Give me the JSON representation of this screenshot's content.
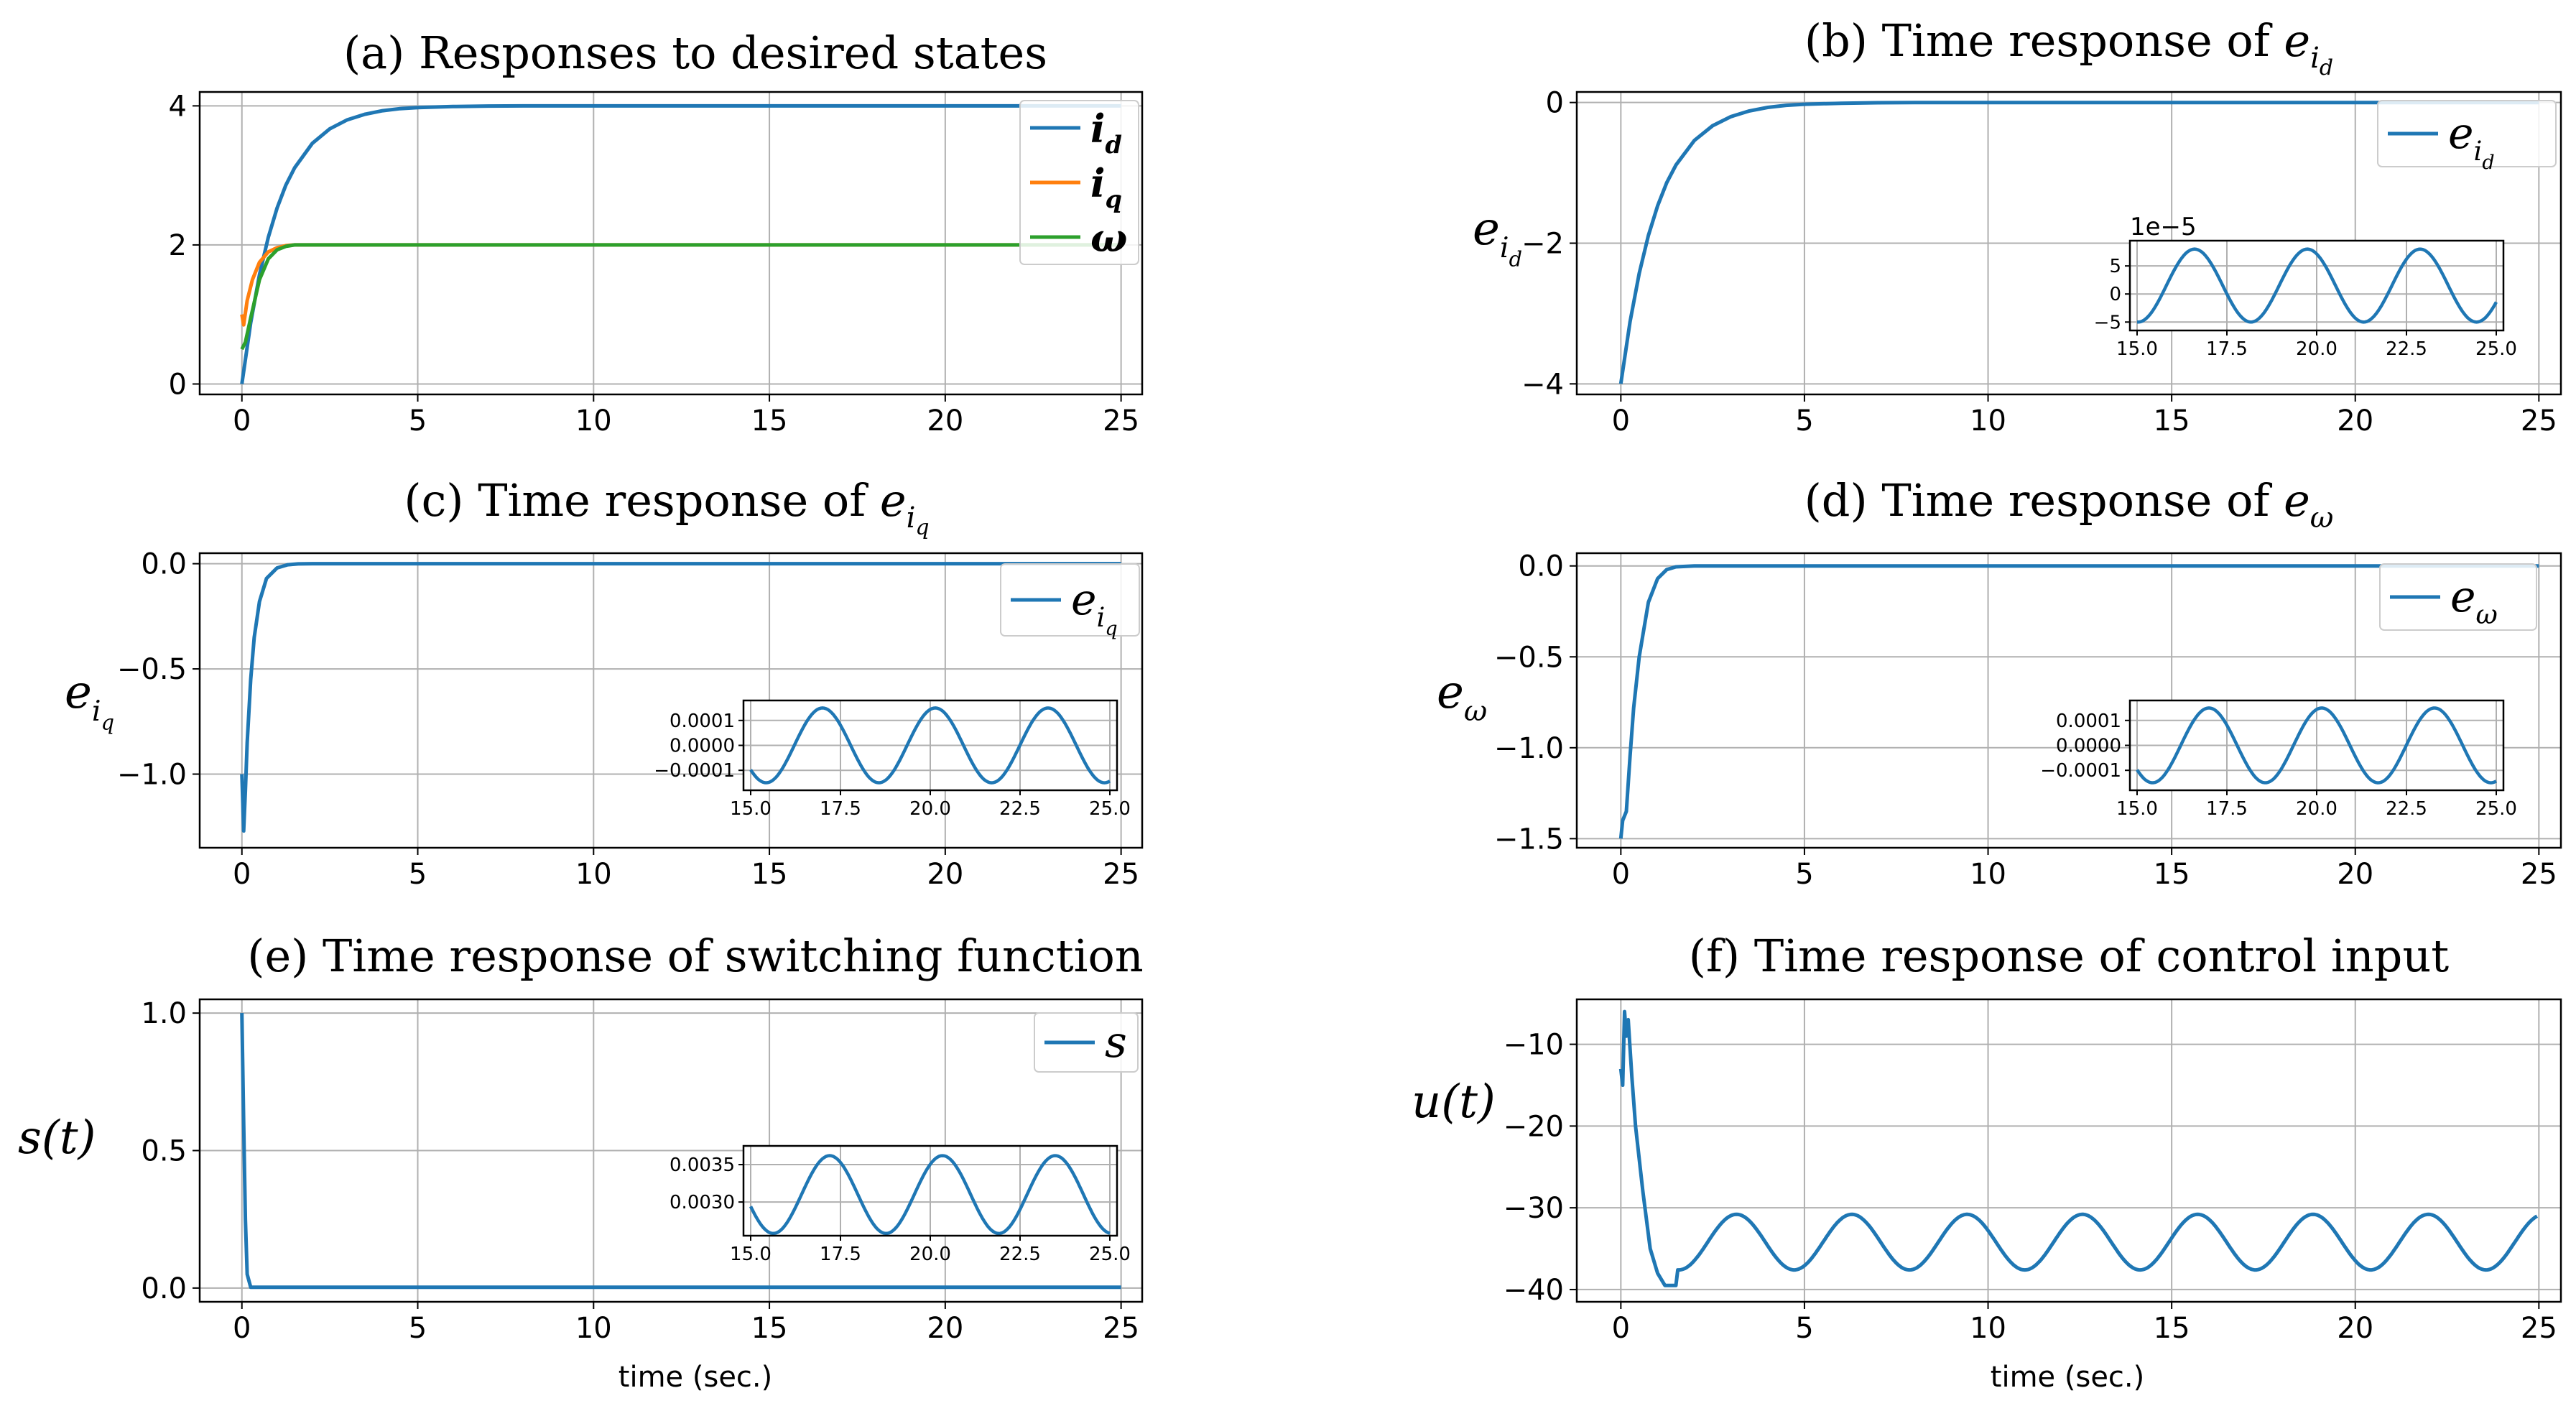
{
  "figure": {
    "xlabel_bottom": "time (sec.)"
  },
  "colors": {
    "blue": "#1f77b4",
    "orange": "#ff7f0e",
    "green": "#2ca02c",
    "grid": "#b0b0b0",
    "axis": "#000000"
  },
  "chart_data": [
    {
      "id": "a",
      "type": "line",
      "title": "(a) Responses to desired states",
      "xlabel": "",
      "ylabel": "",
      "xlim": [
        -1.2,
        25.6
      ],
      "ylim": [
        -0.15,
        4.2
      ],
      "xticks": [
        0,
        5,
        10,
        15,
        20,
        25
      ],
      "yticks": [
        0,
        2,
        4
      ],
      "ytick_labels": [
        "0",
        "2",
        "4"
      ],
      "grid": true,
      "legend": "top-right",
      "series": [
        {
          "name": "i_d",
          "legend_main": "i",
          "legend_sub": "d",
          "color": "#1f77b4",
          "x": [
            0,
            0.25,
            0.5,
            0.75,
            1,
            1.25,
            1.5,
            2,
            2.5,
            3,
            3.5,
            4,
            4.5,
            5,
            6,
            7,
            8,
            10,
            25
          ],
          "y": [
            0,
            0.88,
            1.57,
            2.11,
            2.53,
            2.86,
            3.11,
            3.46,
            3.67,
            3.8,
            3.88,
            3.93,
            3.96,
            3.975,
            3.99,
            3.997,
            4.0,
            4.0,
            4.0
          ]
        },
        {
          "name": "i_q",
          "legend_main": "i",
          "legend_sub": "q",
          "color": "#ff7f0e",
          "x": [
            0,
            0.05,
            0.15,
            0.3,
            0.5,
            0.75,
            1,
            1.25,
            1.5,
            2,
            25
          ],
          "y": [
            1.0,
            0.85,
            1.2,
            1.5,
            1.75,
            1.9,
            1.96,
            1.99,
            2.0,
            2.0,
            2.0
          ]
        },
        {
          "name": "ω",
          "legend_main": "ω",
          "legend_sub": "",
          "color": "#2ca02c",
          "x": [
            0,
            0.1,
            0.25,
            0.5,
            0.75,
            1,
            1.25,
            1.5,
            2,
            25
          ],
          "y": [
            0.5,
            0.6,
            0.95,
            1.5,
            1.8,
            1.93,
            1.98,
            2.0,
            2.0,
            2.0
          ]
        }
      ]
    },
    {
      "id": "b",
      "type": "line",
      "title": "(b) Time response of ",
      "title_sym": "e",
      "title_sub": "i",
      "title_subsub": "d",
      "ylabel": "e",
      "ylabel_sub": "i",
      "ylabel_subsub": "d",
      "xlim": [
        -1.2,
        25.6
      ],
      "ylim": [
        -4.15,
        0.15
      ],
      "xticks": [
        0,
        5,
        10,
        15,
        20,
        25
      ],
      "yticks": [
        0,
        -2,
        -4
      ],
      "ytick_labels": [
        "0",
        "−2",
        "−4"
      ],
      "grid": true,
      "legend": "top-right",
      "series": [
        {
          "name": "e_id",
          "legend_main": "e",
          "legend_sub": "i",
          "legend_subsub": "d",
          "color": "#1f77b4",
          "x": [
            0,
            0.25,
            0.5,
            0.75,
            1,
            1.25,
            1.5,
            2,
            2.5,
            3,
            3.5,
            4,
            4.5,
            5,
            6,
            7,
            8,
            10,
            25
          ],
          "y": [
            -4.0,
            -3.12,
            -2.43,
            -1.89,
            -1.47,
            -1.14,
            -0.89,
            -0.54,
            -0.33,
            -0.2,
            -0.12,
            -0.07,
            -0.04,
            -0.025,
            -0.01,
            -0.003,
            0,
            0,
            0
          ]
        }
      ],
      "inset": {
        "xlim": [
          14.8,
          25.2
        ],
        "ylim": [
          -6.5,
          9.5
        ],
        "xticks": [
          15.0,
          17.5,
          20.0,
          22.5,
          25.0
        ],
        "xtick_labels": [
          "15.0",
          "17.5",
          "20.0",
          "22.5",
          "25.0"
        ],
        "yticks": [
          5,
          0,
          -5
        ],
        "ytick_labels": [
          "5",
          "0",
          "−5"
        ],
        "offset_text": "1e−5",
        "amp": 6.5,
        "mean": 1.5,
        "period": 3.14,
        "peak": 16.6
      }
    },
    {
      "id": "c",
      "type": "line",
      "title": "(c) Time response of ",
      "title_sym": "e",
      "title_sub": "i",
      "title_subsub": "q",
      "ylabel": "e",
      "ylabel_sub": "i",
      "ylabel_subsub": "q",
      "xlim": [
        -1.2,
        25.6
      ],
      "ylim": [
        -1.35,
        0.05
      ],
      "xticks": [
        0,
        5,
        10,
        15,
        20,
        25
      ],
      "yticks": [
        0,
        -0.5,
        -1.0
      ],
      "ytick_labels": [
        "0.0",
        "−0.5",
        "−1.0"
      ],
      "grid": true,
      "legend": "top-right",
      "series": [
        {
          "name": "e_iq",
          "legend_main": "e",
          "legend_sub": "i",
          "legend_subsub": "q",
          "color": "#1f77b4",
          "x": [
            0,
            0.05,
            0.1,
            0.15,
            0.25,
            0.35,
            0.5,
            0.7,
            1,
            1.3,
            1.6,
            2,
            25
          ],
          "y": [
            -1.0,
            -1.27,
            -1.08,
            -0.85,
            -0.55,
            -0.35,
            -0.18,
            -0.07,
            -0.02,
            -0.005,
            -0.001,
            0,
            0
          ]
        }
      ],
      "inset": {
        "xlim": [
          14.8,
          25.2
        ],
        "ylim": [
          -0.00018,
          0.00018
        ],
        "xticks": [
          15.0,
          17.5,
          20.0,
          22.5,
          25.0
        ],
        "xtick_labels": [
          "15.0",
          "17.5",
          "20.0",
          "22.5",
          "25.0"
        ],
        "yticks": [
          0.0001,
          0.0,
          -0.0001
        ],
        "ytick_labels": [
          "0.0001",
          "0.0000",
          "−0.0001"
        ],
        "offset_text": "",
        "amp": 0.00015,
        "mean": 0.0,
        "period": 3.14,
        "peak": 17.0
      }
    },
    {
      "id": "d",
      "type": "line",
      "title": "(d) Time response of ",
      "title_sym": "e",
      "title_sub": "ω",
      "title_subsub": "",
      "ylabel": "e",
      "ylabel_sub": "ω",
      "ylabel_subsub": "",
      "xlim": [
        -1.2,
        25.6
      ],
      "ylim": [
        -1.55,
        0.07
      ],
      "xticks": [
        0,
        5,
        10,
        15,
        20,
        25
      ],
      "yticks": [
        0,
        -0.5,
        -1.0,
        -1.5
      ],
      "ytick_labels": [
        "0.0",
        "−0.5",
        "−1.0",
        "−1.5"
      ],
      "grid": true,
      "legend": "top-right",
      "series": [
        {
          "name": "e_ω",
          "legend_main": "e",
          "legend_sub": "ω",
          "legend_subsub": "",
          "color": "#1f77b4",
          "x": [
            0,
            0.05,
            0.15,
            0.25,
            0.35,
            0.5,
            0.75,
            1,
            1.25,
            1.5,
            2,
            25
          ],
          "y": [
            -1.5,
            -1.4,
            -1.35,
            -1.05,
            -0.78,
            -0.5,
            -0.2,
            -0.07,
            -0.02,
            -0.005,
            0,
            0
          ]
        }
      ],
      "inset": {
        "xlim": [
          14.8,
          25.2
        ],
        "ylim": [
          -0.00018,
          0.00018
        ],
        "xticks": [
          15.0,
          17.5,
          20.0,
          22.5,
          25.0
        ],
        "xtick_labels": [
          "15.0",
          "17.5",
          "20.0",
          "22.5",
          "25.0"
        ],
        "yticks": [
          0.0001,
          0.0,
          -0.0001
        ],
        "ytick_labels": [
          "0.0001",
          "0.0000",
          "−0.0001"
        ],
        "offset_text": "",
        "amp": 0.00015,
        "mean": 0.0,
        "period": 3.14,
        "peak": 17.0
      }
    },
    {
      "id": "e",
      "type": "line",
      "title": "(e) Time response of switching function",
      "ylabel": "s(t)",
      "xlabel": "time (sec.)",
      "xlim": [
        -1.2,
        25.6
      ],
      "ylim": [
        -0.05,
        1.05
      ],
      "xticks": [
        0,
        5,
        10,
        15,
        20,
        25
      ],
      "yticks": [
        0,
        0.5,
        1.0
      ],
      "ytick_labels": [
        "0.0",
        "0.5",
        "1.0"
      ],
      "grid": true,
      "legend": "top-right",
      "series": [
        {
          "name": "s",
          "legend_main": "s",
          "legend_sub": "",
          "legend_subsub": "",
          "color": "#1f77b4",
          "x": [
            0,
            0.05,
            0.1,
            0.15,
            0.25,
            25
          ],
          "y": [
            1.0,
            0.6,
            0.25,
            0.05,
            0.003,
            0.003
          ]
        }
      ],
      "inset": {
        "xlim": [
          14.8,
          25.2
        ],
        "ylim": [
          0.00255,
          0.00375
        ],
        "xticks": [
          15.0,
          17.5,
          20.0,
          22.5,
          25.0
        ],
        "xtick_labels": [
          "15.0",
          "17.5",
          "20.0",
          "22.5",
          "25.0"
        ],
        "yticks": [
          0.0035,
          0.003
        ],
        "ytick_labels": [
          "0.0035",
          "0.0030"
        ],
        "offset_text": "",
        "amp": 0.00052,
        "mean": 0.0031,
        "period": 3.14,
        "peak": 17.2
      }
    },
    {
      "id": "f",
      "type": "line",
      "title": "(f) Time response of control input",
      "ylabel": "u(t)",
      "xlabel": "time (sec.)",
      "xlim": [
        -1.2,
        25.6
      ],
      "ylim": [
        -41.5,
        -4.5
      ],
      "xticks": [
        0,
        5,
        10,
        15,
        20,
        25
      ],
      "yticks": [
        -10,
        -20,
        -30,
        -40
      ],
      "ytick_labels": [
        "−10",
        "−20",
        "−30",
        "−40"
      ],
      "grid": true,
      "legend": "none",
      "series": [
        {
          "name": "u",
          "color": "#1f77b4",
          "x": [
            0,
            0.05,
            0.1,
            0.15,
            0.2,
            0.3,
            0.4,
            0.6,
            0.8,
            1.0,
            1.2,
            1.5
          ],
          "y": [
            -13,
            -15,
            -6,
            -9,
            -7,
            -14,
            -20,
            -28,
            -35,
            -38,
            -39.5,
            -39.5
          ],
          "osc": {
            "from": 1.5,
            "to": 25,
            "mean": -34.2,
            "amp": 3.4,
            "period": 3.14,
            "peak": 3.15,
            "decay_from": -39.5
          }
        }
      ]
    }
  ]
}
